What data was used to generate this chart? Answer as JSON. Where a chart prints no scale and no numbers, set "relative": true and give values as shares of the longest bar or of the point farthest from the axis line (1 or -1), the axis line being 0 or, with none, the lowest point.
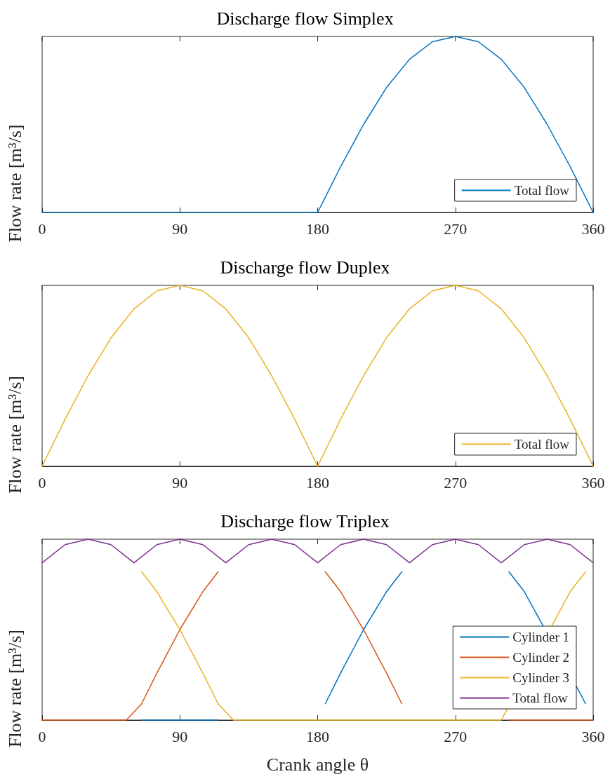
{
  "chart_data": [
    {
      "type": "line",
      "title": "Discharge flow Simplex",
      "ylabel": "Flow rate [m³/s]",
      "relative": true,
      "xlim": [
        0,
        360
      ],
      "xticks": [
        0,
        90,
        180,
        270,
        360
      ],
      "grid": false,
      "legend": "bottom right",
      "marker": "none",
      "x": [
        0,
        15,
        30,
        45,
        60,
        75,
        90,
        105,
        120,
        135,
        150,
        165,
        180,
        195,
        210,
        225,
        240,
        255,
        270,
        285,
        300,
        315,
        330,
        345,
        360
      ],
      "series": [
        {
          "name": "Total flow",
          "color": "#0072bd",
          "values": [
            0,
            0,
            0,
            0,
            0,
            0,
            0,
            0,
            0,
            0,
            0,
            0,
            0,
            0.26,
            0.5,
            0.71,
            0.87,
            0.97,
            1,
            0.97,
            0.87,
            0.71,
            0.5,
            0.26,
            0
          ]
        }
      ]
    },
    {
      "type": "line",
      "title": "Discharge flow Duplex",
      "ylabel": "Flow rate [m³/s]",
      "relative": true,
      "xlim": [
        0,
        360
      ],
      "xticks": [
        0,
        90,
        180,
        270,
        360
      ],
      "grid": false,
      "legend": "bottom right",
      "marker": "none",
      "x": [
        0,
        15,
        30,
        45,
        60,
        75,
        90,
        105,
        120,
        135,
        150,
        165,
        180,
        195,
        210,
        225,
        240,
        255,
        270,
        285,
        300,
        315,
        330,
        345,
        360
      ],
      "series": [
        {
          "name": "Total flow",
          "color": "#edb120",
          "values": [
            0,
            0.26,
            0.5,
            0.71,
            0.87,
            0.97,
            1,
            0.97,
            0.87,
            0.71,
            0.5,
            0.26,
            0,
            0.26,
            0.5,
            0.71,
            0.87,
            0.97,
            1,
            0.97,
            0.87,
            0.71,
            0.5,
            0.26,
            0
          ]
        }
      ]
    },
    {
      "type": "line",
      "title": "Discharge flow Triplex",
      "xlabel": "Crank angle θ",
      "ylabel": "Flow rate [m³/s]",
      "relative": true,
      "xlim": [
        0,
        360
      ],
      "xticks": [
        0,
        90,
        180,
        270,
        360
      ],
      "grid": false,
      "legend": "bottom right",
      "marker": "none",
      "x": [
        0,
        15,
        30,
        45,
        60,
        75,
        90,
        105,
        120,
        135,
        150,
        165,
        180,
        195,
        210,
        225,
        240,
        255,
        270,
        285,
        300,
        315,
        330,
        345,
        360
      ],
      "series": [
        {
          "name": "Cylinder 1",
          "color": "#0072bd",
          "x": [
            65,
            75,
            90,
            105,
            115,
            150,
            185,
            195,
            210,
            225,
            235,
            270,
            305,
            315,
            352,
            355
          ],
          "values": [
            0,
            0,
            0,
            0,
            0,
            null,
            0.09,
            0.26,
            0.5,
            0.71,
            0.82,
            null,
            0.82,
            0.71,
            0.14,
            0.09
          ]
        },
        {
          "name": "Cylinder 2",
          "color": "#d95319",
          "x": [
            0,
            15,
            30,
            45,
            55,
            65,
            75,
            90,
            105,
            115,
            150,
            185,
            195,
            210,
            225,
            235,
            270,
            305,
            330,
            360
          ],
          "values": [
            0,
            0,
            0,
            0,
            0,
            0.09,
            0.26,
            0.5,
            0.71,
            0.82,
            null,
            0.82,
            0.71,
            0.5,
            0.26,
            0.09,
            null,
            0,
            0,
            0
          ]
        },
        {
          "name": "Cylinder 3",
          "color": "#edb120",
          "x": [
            65,
            75,
            90,
            105,
            115,
            125,
            150,
            180,
            210,
            240,
            270,
            295,
            300,
            345,
            355
          ],
          "values": [
            0.82,
            0.71,
            0.5,
            0.26,
            0.09,
            0,
            0,
            0,
            0,
            0,
            0,
            0,
            0,
            0.71,
            0.82
          ]
        },
        {
          "name": "Total flow",
          "color": "#7e2f8e",
          "values": [
            0.87,
            0.97,
            1,
            0.97,
            0.87,
            0.97,
            1,
            0.97,
            0.87,
            0.97,
            1,
            0.97,
            0.87,
            0.97,
            1,
            0.97,
            0.87,
            0.97,
            1,
            0.97,
            0.87,
            0.97,
            1,
            0.97,
            0.87
          ]
        }
      ]
    }
  ]
}
